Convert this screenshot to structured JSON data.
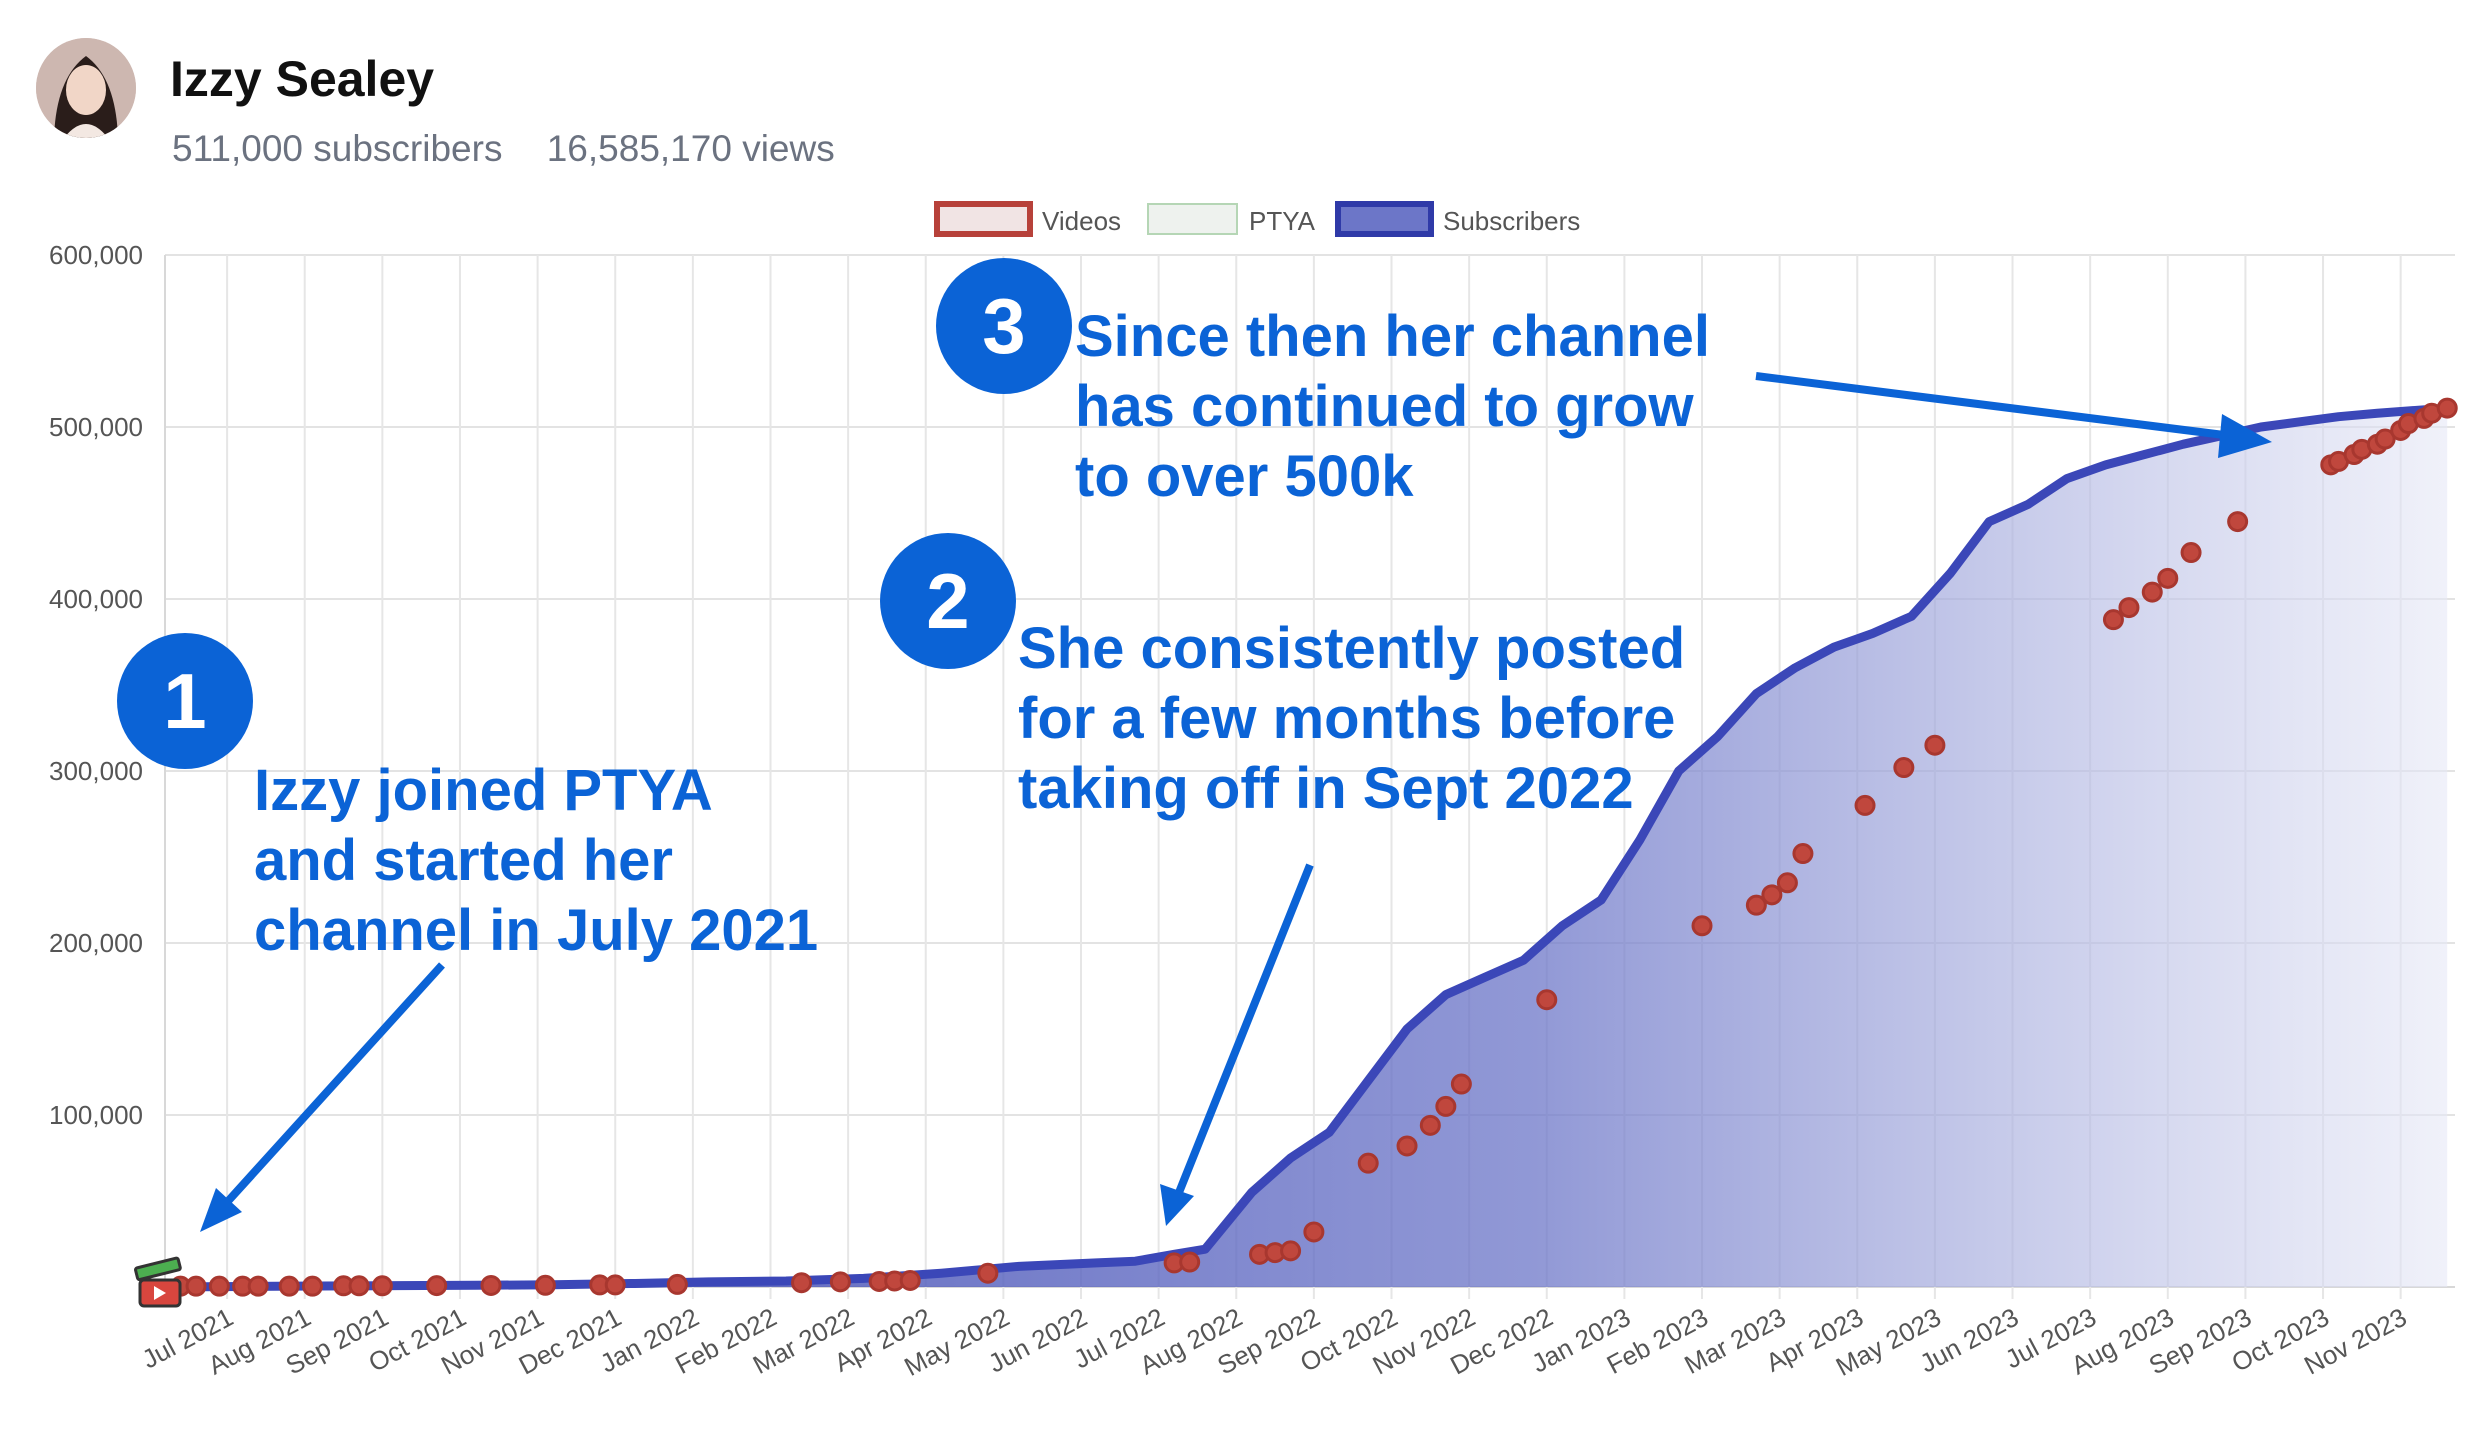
{
  "channel": {
    "name": "Izzy Sealey",
    "subscribers": "511,000 subscribers",
    "views": "16,585,170 views"
  },
  "annotations": {
    "badge1": "1",
    "badge2": "2",
    "badge3": "3",
    "text1": "Izzy joined PTYA\nand started her\nchannel in July 2021",
    "text2": "She consistently posted\nfor a few months before\ntaking off in Sept 2022",
    "text3": "Since then her channel\nhas continued to grow\nto over 500k"
  },
  "colors": {
    "line": "#3b47b8",
    "fill": "#7b84cf",
    "marker": "#c0473d",
    "annotation": "#0b63d6"
  },
  "chart_data": {
    "type": "area",
    "legend": [
      "Videos",
      "PTYA",
      "Subscribers"
    ],
    "legend_position": "top-center",
    "ylim": [
      0,
      600000
    ],
    "yticks": [
      100000,
      200000,
      300000,
      400000,
      500000,
      600000
    ],
    "ytick_labels": [
      "100,000",
      "200,000",
      "300,000",
      "400,000",
      "500,000",
      "600,000"
    ],
    "xlim": [
      0,
      29.5
    ],
    "xticks": [
      0.8,
      1.8,
      2.8,
      3.8,
      4.8,
      5.8,
      6.8,
      7.8,
      8.8,
      9.8,
      10.8,
      11.8,
      12.8,
      13.8,
      14.8,
      15.8,
      16.8,
      17.8,
      18.8,
      19.8,
      20.8,
      21.8,
      22.8,
      23.8,
      24.8,
      25.8,
      26.8,
      27.8,
      28.8
    ],
    "xtick_labels": [
      "Jul 2021",
      "Aug 2021",
      "Sep 2021",
      "Oct 2021",
      "Nov 2021",
      "Dec 2021",
      "Jan 2022",
      "Feb 2022",
      "Mar 2022",
      "Apr 2022",
      "May 2022",
      "Jun 2022",
      "Jul 2022",
      "Aug 2022",
      "Sep 2022",
      "Oct 2022",
      "Nov 2022",
      "Dec 2022",
      "Jan 2023",
      "Feb 2023",
      "Mar 2023",
      "Apr 2023",
      "May 2023",
      "Jun 2023",
      "Jul 2023",
      "Aug 2023",
      "Sep 2023",
      "Oct 2023",
      "Nov 2023"
    ],
    "subscribers": {
      "x": [
        0,
        1,
        2,
        3,
        4,
        5,
        6,
        7,
        8,
        9,
        10,
        11,
        11.5,
        12,
        12.5,
        13,
        13.4,
        14,
        14.5,
        15,
        15.5,
        16,
        16.5,
        17,
        17.5,
        18,
        18.5,
        19,
        19.5,
        20,
        20.5,
        21,
        21.5,
        22,
        22.5,
        23,
        23.5,
        24,
        24.5,
        25,
        25.5,
        26,
        26.5,
        27,
        27.5,
        28,
        28.5,
        29.4
      ],
      "y": [
        0,
        300,
        600,
        800,
        1000,
        1300,
        2000,
        3000,
        3500,
        5000,
        8000,
        12000,
        13000,
        14000,
        15000,
        19000,
        22000,
        55000,
        75000,
        90000,
        120000,
        150000,
        170000,
        180000,
        190000,
        210000,
        225000,
        260000,
        300000,
        320000,
        345000,
        360000,
        372000,
        380000,
        390000,
        415000,
        445000,
        455000,
        470000,
        478000,
        484000,
        490000,
        495000,
        500000,
        503000,
        506000,
        508000,
        511000
      ]
    },
    "videos": {
      "x": [
        0.2,
        0.4,
        0.7,
        1.0,
        1.2,
        1.6,
        1.9,
        2.3,
        2.5,
        2.8,
        3.5,
        4.2,
        4.9,
        5.6,
        5.8,
        6.6,
        8.2,
        8.7,
        9.2,
        9.4,
        9.6,
        10.6,
        13.0,
        13.2,
        14.1,
        14.3,
        14.5,
        14.8,
        15.5,
        16.0,
        16.3,
        16.5,
        16.7,
        17.8,
        19.8,
        20.5,
        20.7,
        20.9,
        21.1,
        21.9,
        22.4,
        22.8,
        25.1,
        25.3,
        25.6,
        25.8,
        26.1,
        26.7,
        27.9,
        28.0,
        28.2,
        28.3,
        28.5,
        28.6,
        28.8,
        28.9,
        29.1,
        29.2,
        29.4
      ],
      "y": [
        500,
        500,
        500,
        500,
        500,
        500,
        500,
        700,
        700,
        700,
        800,
        900,
        1000,
        1200,
        1200,
        1500,
        2500,
        3000,
        3200,
        3500,
        3800,
        8000,
        14000,
        14500,
        19000,
        20000,
        21000,
        32000,
        72000,
        82000,
        94000,
        105000,
        118000,
        167000,
        210000,
        222000,
        228000,
        235000,
        252000,
        280000,
        302000,
        315000,
        388000,
        395000,
        404000,
        412000,
        427000,
        445000,
        478000,
        480000,
        484000,
        487000,
        490000,
        493000,
        498000,
        502000,
        505000,
        508000,
        511000
      ]
    }
  }
}
